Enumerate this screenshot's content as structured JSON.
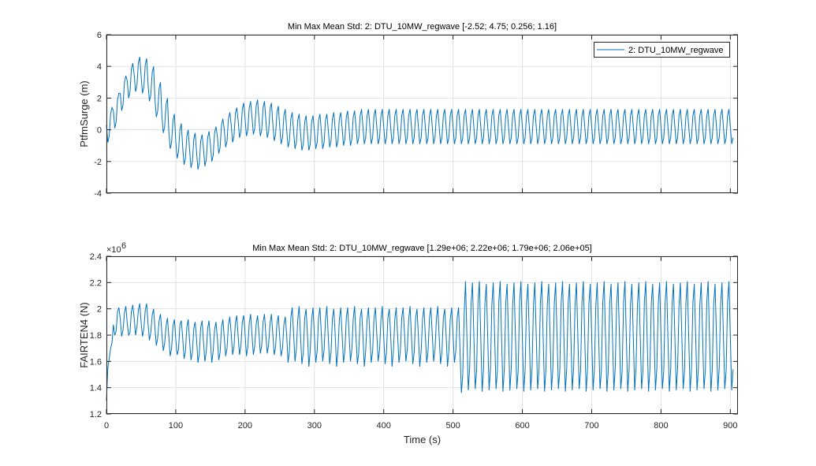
{
  "figure": {
    "background": "#ffffff",
    "line_color": "#0072BD",
    "grid_color": "#e1e1e1"
  },
  "chart_data": [
    {
      "type": "line",
      "title": "Min Max Mean Std: 2: DTU_10MW_regwave [-2.52; 4.75; 0.256; 1.16]",
      "xlabel": "",
      "ylabel": "PtfmSurge (m)",
      "xlim": [
        0,
        911
      ],
      "ylim": [
        -4,
        6
      ],
      "xticks": [
        0,
        100,
        200,
        300,
        400,
        500,
        600,
        700,
        800,
        900
      ],
      "xtick_labels_shown": false,
      "yticks": [
        -4,
        -2,
        0,
        2,
        4,
        6
      ],
      "ytick_labels": [
        "-4",
        "-2",
        "0",
        "2",
        "4",
        "6"
      ],
      "grid": true,
      "legend": {
        "placement": "top-right",
        "entries": [
          "2: DTU_10MW_regwave"
        ]
      },
      "x": {
        "start": 0,
        "step": 2
      },
      "series": [
        {
          "name": "2: DTU_10MW_regwave",
          "values": [
            0.3,
            -0.8,
            -0.4,
            1.0,
            1.4,
            1.2,
            0.1,
            0.5,
            1.9,
            2.3,
            2.3,
            1.2,
            1.6,
            3.0,
            3.4,
            3.1,
            2.0,
            2.4,
            3.8,
            4.2,
            3.5,
            2.4,
            2.8,
            4.2,
            4.6,
            3.4,
            2.3,
            2.7,
            4.1,
            4.5,
            2.9,
            1.8,
            2.2,
            3.6,
            4.0,
            1.9,
            0.8,
            1.2,
            2.6,
            3.0,
            0.9,
            -0.2,
            0.2,
            1.6,
            2.0,
            -0.1,
            -1.2,
            -0.8,
            0.6,
            1.0,
            -0.7,
            -1.8,
            -1.4,
            0.0,
            0.4,
            -1.1,
            -2.2,
            -1.8,
            -0.4,
            0.0,
            -1.3,
            -2.4,
            -2.0,
            -0.6,
            -0.2,
            -1.4,
            -2.5,
            -2.1,
            -0.7,
            -0.3,
            -1.2,
            -2.3,
            -1.9,
            -0.5,
            -0.1,
            -0.9,
            -2.0,
            -1.6,
            -0.2,
            0.2,
            -0.4,
            -1.5,
            -1.1,
            0.3,
            0.7,
            0.0,
            -1.1,
            -0.7,
            0.7,
            1.1,
            0.3,
            -0.8,
            -0.4,
            1.0,
            1.4,
            0.6,
            -0.5,
            -0.1,
            1.3,
            1.7,
            0.7,
            -0.4,
            0.0,
            1.4,
            1.8,
            0.8,
            -0.3,
            0.1,
            1.5,
            1.9,
            0.7,
            -0.4,
            0.0,
            1.4,
            1.8,
            0.6,
            -0.5,
            -0.1,
            1.3,
            1.7,
            0.4,
            -0.7,
            -0.3,
            1.1,
            1.5,
            0.2,
            -0.9,
            -0.5,
            0.9,
            1.3,
            0.0,
            -1.1,
            -0.7,
            0.7,
            1.1,
            -0.1,
            -1.2,
            -0.8,
            0.6,
            1.0,
            -0.2,
            -1.3,
            -0.9,
            0.5,
            0.9,
            -0.2,
            -1.3,
            -0.9,
            0.5,
            0.9,
            -0.1,
            -1.2,
            -0.8,
            0.6,
            1.0,
            -0.1,
            -1.2,
            -0.8,
            0.6,
            1.0,
            0.0,
            -1.1,
            -0.7,
            0.7,
            1.1,
            0.0,
            -1.1,
            -0.7,
            0.7,
            1.1,
            0.1,
            -1.0,
            -0.6,
            0.8,
            1.2,
            0.1,
            -1.0,
            -0.6,
            0.8,
            1.2,
            0.2,
            -0.9,
            -0.5,
            0.9,
            1.3,
            0.2,
            -0.9,
            -0.5,
            0.9,
            1.3,
            0.2,
            -0.9,
            -0.5,
            0.9,
            1.3,
            0.2,
            -0.9,
            -0.5,
            0.9,
            1.3,
            0.2,
            -0.9,
            -0.5,
            0.9,
            1.3,
            0.2,
            -0.9,
            -0.5,
            0.9,
            1.3,
            0.2,
            -0.9,
            -0.5,
            0.9,
            1.3,
            0.2,
            -0.9,
            -0.5,
            0.9,
            1.3,
            0.2,
            -0.9,
            -0.5,
            0.9,
            1.3,
            0.2,
            -0.9,
            -0.5,
            0.9,
            1.3,
            0.2,
            -0.9,
            -0.5,
            0.9,
            1.3,
            0.2,
            -0.9,
            -0.5,
            0.9,
            1.3,
            0.2,
            -0.9,
            -0.5,
            0.9,
            1.3,
            0.2,
            -0.9,
            -0.5,
            0.9,
            1.3,
            0.2,
            -0.9,
            -0.5,
            0.9,
            1.3,
            0.2,
            -0.9,
            -0.5,
            0.9,
            1.3,
            0.2,
            -0.9,
            -0.5,
            0.9,
            1.3,
            0.2,
            -0.9,
            -0.5,
            0.9,
            1.3,
            0.2,
            -0.9,
            -0.5,
            0.9,
            1.3,
            0.2,
            -0.9,
            -0.5,
            0.9,
            1.3,
            0.2,
            -0.9,
            -0.5,
            0.9,
            1.3,
            0.2,
            -0.9,
            -0.5,
            0.9,
            1.3,
            0.2,
            -0.9,
            -0.5,
            0.9,
            1.3,
            0.2,
            -0.9,
            -0.5,
            0.9,
            1.3,
            0.2,
            -0.9,
            -0.5,
            0.9,
            1.3,
            0.2,
            -0.9,
            -0.5,
            0.9,
            1.3,
            0.2,
            -0.9,
            -0.5,
            0.9,
            1.3,
            0.2,
            -0.9,
            -0.5,
            0.9,
            1.3,
            0.2,
            -0.9,
            -0.5,
            0.9,
            1.3,
            0.2,
            -0.9,
            -0.5,
            0.9,
            1.3,
            0.2,
            -0.9,
            -0.5,
            0.9,
            1.3,
            0.2,
            -0.9,
            -0.5,
            0.9,
            1.3,
            0.2,
            -0.9,
            -0.5,
            0.9,
            1.3,
            0.2,
            -0.9,
            -0.5,
            0.9,
            1.3,
            0.2,
            -0.9,
            -0.5,
            0.9,
            1.3,
            0.2,
            -0.9,
            -0.5,
            0.9,
            1.3,
            0.2,
            -0.9,
            -0.5,
            0.9,
            1.3,
            0.2,
            -0.9,
            -0.5,
            0.9,
            1.3,
            0.2,
            -0.9,
            -0.5,
            0.9,
            1.3,
            0.2,
            -0.9,
            -0.5,
            0.9,
            1.3,
            0.2,
            -0.9,
            -0.5,
            0.9,
            1.3,
            0.2,
            -0.9,
            -0.5,
            0.9,
            1.3,
            0.2,
            -0.9,
            -0.5,
            0.9,
            1.3,
            0.2,
            -0.9,
            -0.5,
            0.9,
            1.3,
            0.2,
            -0.9,
            -0.5,
            0.9,
            1.3,
            0.2,
            -0.9,
            -0.5,
            0.9,
            1.3,
            0.2,
            -0.9,
            -0.5,
            0.9,
            1.3,
            0.2,
            -0.9,
            -0.5,
            0.9,
            1.3,
            0.2,
            -0.9,
            -0.5,
            0.9,
            1.3,
            0.2,
            -0.9,
            -0.5,
            0.9,
            1.3,
            0.2,
            -0.9,
            -0.5,
            0.9,
            1.3,
            0.2,
            -0.9,
            -0.5,
            0.9,
            1.3,
            0.2,
            -0.9,
            -0.5,
            0.9,
            1.3,
            0.2,
            -0.9,
            -0.5,
            0.9,
            1.3,
            0.2,
            -0.9,
            -0.5
          ]
        }
      ]
    },
    {
      "type": "line",
      "title": "Min Max Mean Std: 2: DTU_10MW_regwave [1.29e+06; 2.22e+06; 1.79e+06; 2.06e+05]",
      "xlabel": "Time (s)",
      "ylabel": "FAIRTEN4 (N)",
      "y_exponent_label": "×10",
      "y_exponent": "6",
      "xlim": [
        0,
        911
      ],
      "ylim": [
        1.2,
        2.4
      ],
      "xticks": [
        0,
        100,
        200,
        300,
        400,
        500,
        600,
        700,
        800,
        900
      ],
      "xtick_labels": [
        "0",
        "100",
        "200",
        "300",
        "400",
        "500",
        "600",
        "700",
        "800",
        "900"
      ],
      "yticks": [
        1.2,
        1.4,
        1.6,
        1.8,
        2.0,
        2.2,
        2.4
      ],
      "ytick_labels": [
        "1.2",
        "1.4",
        "1.6",
        "1.8",
        "2",
        "2.2",
        "2.4"
      ],
      "grid": true,
      "x": {
        "start": 0,
        "step": 2
      },
      "series": [
        {
          "values": [
            1.3,
            1.55,
            1.62,
            1.7,
            1.74,
            1.88,
            1.8,
            1.83,
            1.98,
            2.01,
            1.92,
            1.79,
            1.84,
            1.97,
            2.02,
            1.89,
            1.8,
            1.82,
            1.98,
            2.03,
            1.93,
            1.8,
            1.86,
            1.99,
            2.04,
            1.9,
            1.79,
            1.85,
            1.99,
            2.04,
            1.89,
            1.76,
            1.82,
            1.95,
            2.0,
            1.85,
            1.72,
            1.78,
            1.91,
            1.96,
            1.81,
            1.68,
            1.74,
            1.87,
            1.93,
            1.79,
            1.64,
            1.7,
            1.87,
            1.92,
            1.77,
            1.65,
            1.69,
            1.88,
            1.91,
            1.78,
            1.62,
            1.68,
            1.86,
            1.92,
            1.75,
            1.61,
            1.67,
            1.85,
            1.9,
            1.77,
            1.59,
            1.66,
            1.86,
            1.91,
            1.75,
            1.6,
            1.67,
            1.85,
            1.91,
            1.76,
            1.59,
            1.68,
            1.84,
            1.9,
            1.78,
            1.61,
            1.67,
            1.86,
            1.92,
            1.78,
            1.64,
            1.7,
            1.88,
            1.94,
            1.81,
            1.65,
            1.71,
            1.89,
            1.95,
            1.79,
            1.65,
            1.72,
            1.9,
            1.95,
            1.81,
            1.64,
            1.71,
            1.89,
            1.96,
            1.8,
            1.65,
            1.72,
            1.88,
            1.95,
            1.82,
            1.66,
            1.72,
            1.9,
            1.96,
            1.8,
            1.66,
            1.73,
            1.89,
            1.96,
            1.81,
            1.65,
            1.71,
            1.89,
            1.95,
            1.78,
            1.64,
            1.7,
            1.88,
            1.94,
            1.8,
            1.59,
            1.68,
            1.93,
            2.01,
            1.81,
            1.6,
            1.69,
            1.92,
            2.02,
            1.79,
            1.58,
            1.67,
            1.93,
            2.0,
            1.8,
            1.56,
            1.68,
            1.92,
            2.01,
            1.8,
            1.59,
            1.68,
            1.93,
            2.01,
            1.81,
            1.6,
            1.69,
            1.92,
            2.02,
            1.79,
            1.58,
            1.67,
            1.93,
            2.0,
            1.8,
            1.56,
            1.68,
            1.92,
            2.01,
            1.8,
            1.59,
            1.68,
            1.93,
            2.01,
            1.81,
            1.6,
            1.69,
            1.92,
            2.02,
            1.79,
            1.58,
            1.67,
            1.93,
            2.0,
            1.8,
            1.56,
            1.68,
            1.92,
            2.01,
            1.8,
            1.59,
            1.68,
            1.93,
            2.01,
            1.81,
            1.6,
            1.69,
            1.92,
            2.02,
            1.79,
            1.58,
            1.67,
            1.93,
            2.0,
            1.8,
            1.56,
            1.68,
            1.92,
            2.01,
            1.8,
            1.59,
            1.68,
            1.93,
            2.01,
            1.81,
            1.6,
            1.69,
            1.92,
            2.02,
            1.79,
            1.58,
            1.67,
            1.93,
            2.0,
            1.8,
            1.56,
            1.68,
            1.92,
            2.01,
            1.8,
            1.59,
            1.68,
            1.93,
            2.01,
            1.81,
            1.6,
            1.69,
            1.92,
            2.02,
            1.79,
            1.58,
            1.67,
            1.93,
            2.0,
            1.8,
            1.56,
            1.68,
            1.92,
            2.01,
            1.8,
            1.59,
            1.68,
            1.93,
            2.01,
            1.7,
            1.36,
            1.5,
            1.95,
            2.21,
            1.79,
            1.38,
            1.55,
            2.03,
            2.2,
            1.8,
            1.39,
            1.53,
            2.05,
            2.21,
            1.78,
            1.37,
            1.54,
            2.04,
            2.19,
            1.79,
            1.38,
            1.55,
            2.03,
            2.2,
            1.8,
            1.39,
            1.53,
            2.05,
            2.21,
            1.78,
            1.37,
            1.54,
            2.04,
            2.19,
            1.79,
            1.38,
            1.55,
            2.03,
            2.2,
            1.8,
            1.39,
            1.53,
            2.05,
            2.21,
            1.78,
            1.37,
            1.54,
            2.04,
            2.19,
            1.79,
            1.38,
            1.55,
            2.03,
            2.2,
            1.8,
            1.39,
            1.53,
            2.05,
            2.21,
            1.78,
            1.37,
            1.54,
            2.04,
            2.19,
            1.79,
            1.38,
            1.55,
            2.03,
            2.2,
            1.8,
            1.39,
            1.53,
            2.05,
            2.21,
            1.78,
            1.37,
            1.54,
            2.04,
            2.19,
            1.79,
            1.38,
            1.55,
            2.03,
            2.2,
            1.8,
            1.39,
            1.53,
            2.05,
            2.21,
            1.78,
            1.37,
            1.54,
            2.04,
            2.19,
            1.79,
            1.38,
            1.55,
            2.03,
            2.2,
            1.8,
            1.39,
            1.53,
            2.05,
            2.21,
            1.78,
            1.37,
            1.54,
            2.04,
            2.19,
            1.79,
            1.38,
            1.55,
            2.03,
            2.2,
            1.8,
            1.39,
            1.53,
            2.05,
            2.21,
            1.78,
            1.37,
            1.54,
            2.04,
            2.19,
            1.79,
            1.38,
            1.55,
            2.03,
            2.2,
            1.8,
            1.39,
            1.53,
            2.05,
            2.21,
            1.78,
            1.37,
            1.54,
            2.04,
            2.19,
            1.79,
            1.38,
            1.55,
            2.03,
            2.2,
            1.8,
            1.39,
            1.53,
            2.05,
            2.21,
            1.78,
            1.37,
            1.54,
            2.04,
            2.19,
            1.79,
            1.38,
            1.55,
            2.03,
            2.2,
            1.8,
            1.39,
            1.53,
            2.05,
            2.21,
            1.78,
            1.37,
            1.54,
            2.04,
            2.19,
            1.79,
            1.38,
            1.55,
            2.03,
            2.2,
            1.8,
            1.39,
            1.53,
            2.05,
            2.21,
            1.78,
            1.37,
            1.54,
            2.04,
            2.19,
            1.79,
            1.38,
            1.55,
            2.03,
            2.2,
            1.8,
            1.39,
            1.53,
            2.05,
            2.21,
            1.79,
            1.38,
            1.54
          ]
        }
      ]
    }
  ]
}
